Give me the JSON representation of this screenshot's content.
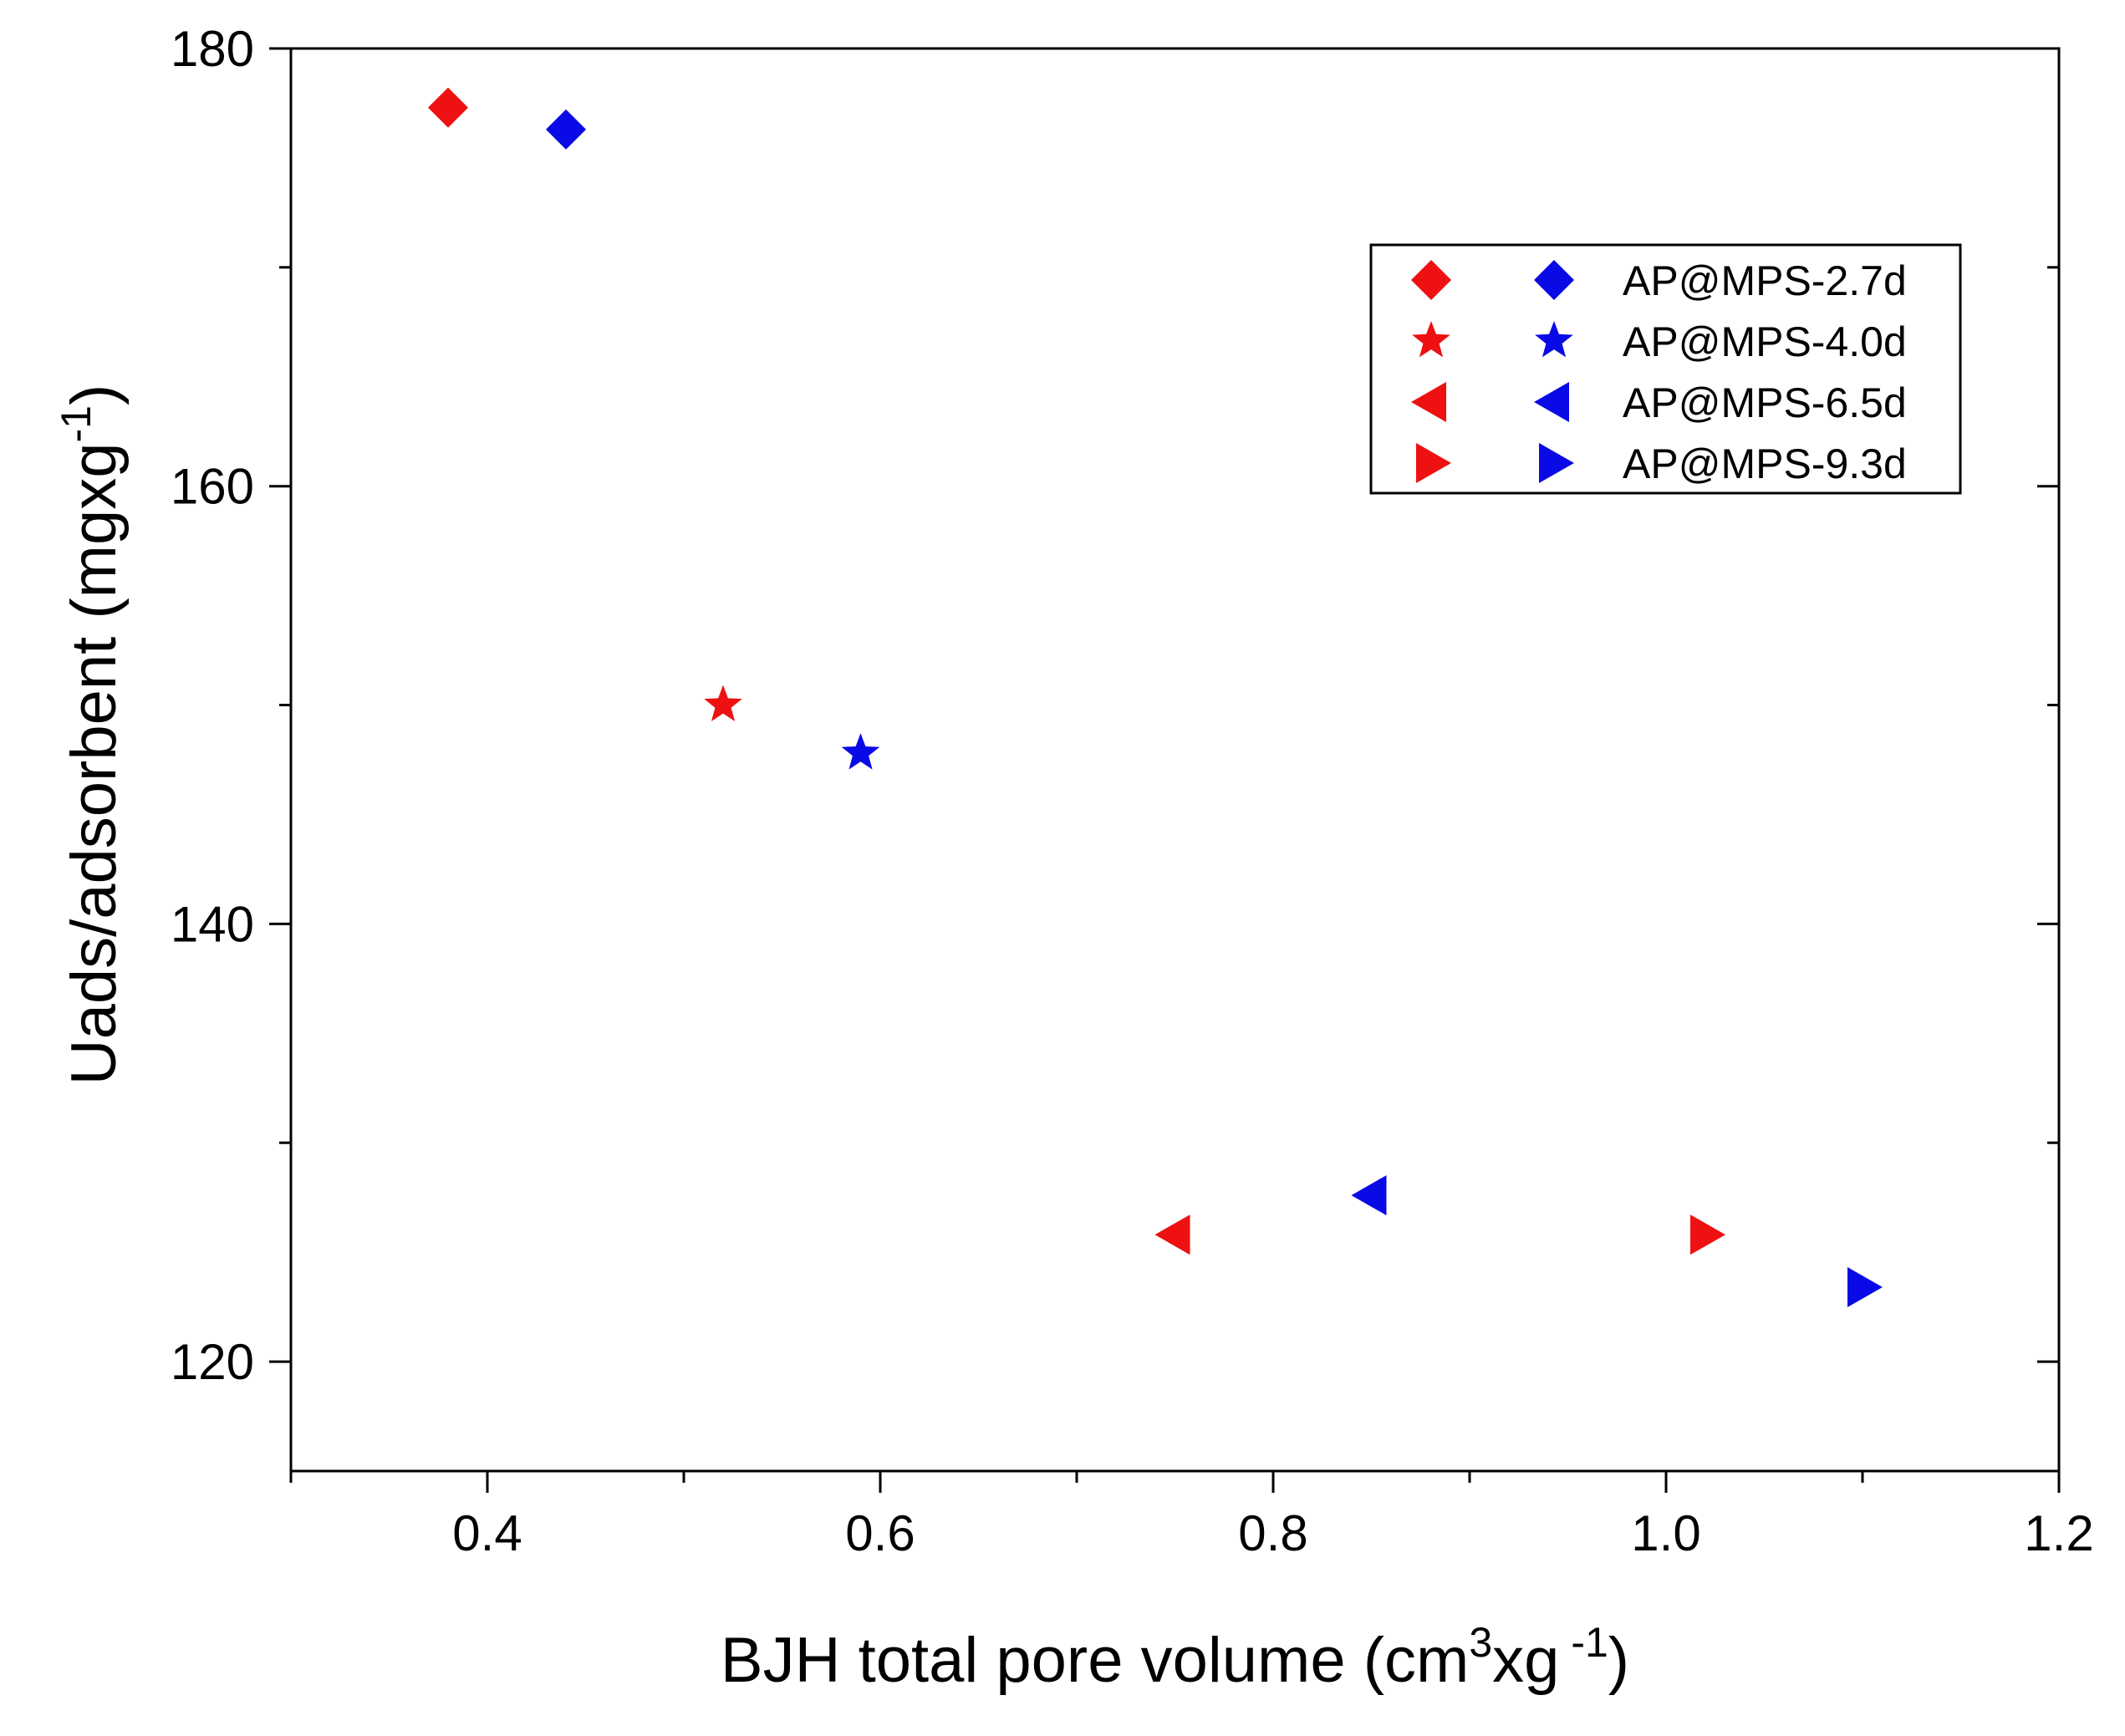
{
  "chart_data": {
    "type": "scatter",
    "title": "",
    "xlabel": {
      "prefix": "BJH total pore volume (cm",
      "sup": "3",
      "middle": "xg",
      "sup2": " -1",
      "suffix": ")"
    },
    "ylabel": {
      "prefix": "Uads/adsorbent (mgxg",
      "sup": "-1",
      "suffix": ")"
    },
    "xlim": [
      0.3,
      1.2
    ],
    "ylim": [
      115,
      180
    ],
    "x_ticks": [
      0.4,
      0.6,
      0.8,
      1.0,
      1.2
    ],
    "x_tick_labels": [
      "0.4",
      "0.6",
      "0.8",
      "1.0",
      "1.2"
    ],
    "x_minor_ticks": [
      0.3,
      0.5,
      0.7,
      0.9,
      1.1
    ],
    "y_ticks": [
      120,
      140,
      160,
      180
    ],
    "y_tick_labels": [
      "120",
      "140",
      "160",
      "180"
    ],
    "y_minor_ticks": [
      130,
      150,
      170
    ],
    "legend_position": "top-right",
    "colors": {
      "red": "#ee1111",
      "blue": "#0a0ae6"
    },
    "series": [
      {
        "name": "AP@MPS-2.7d",
        "marker": "diamond",
        "points": [
          {
            "color": "red",
            "x": 0.38,
            "y": 177.3
          },
          {
            "color": "blue",
            "x": 0.44,
            "y": 176.3
          }
        ]
      },
      {
        "name": "AP@MPS-4.0d",
        "marker": "star",
        "points": [
          {
            "color": "red",
            "x": 0.52,
            "y": 150.0
          },
          {
            "color": "blue",
            "x": 0.59,
            "y": 147.8
          }
        ]
      },
      {
        "name": "AP@MPS-6.5d",
        "marker": "triangle-left",
        "points": [
          {
            "color": "red",
            "x": 0.75,
            "y": 125.8
          },
          {
            "color": "blue",
            "x": 0.85,
            "y": 127.6
          }
        ]
      },
      {
        "name": "AP@MPS-9.3d",
        "marker": "triangle-right",
        "points": [
          {
            "color": "red",
            "x": 1.02,
            "y": 125.8
          },
          {
            "color": "blue",
            "x": 1.1,
            "y": 123.4
          }
        ]
      }
    ]
  }
}
